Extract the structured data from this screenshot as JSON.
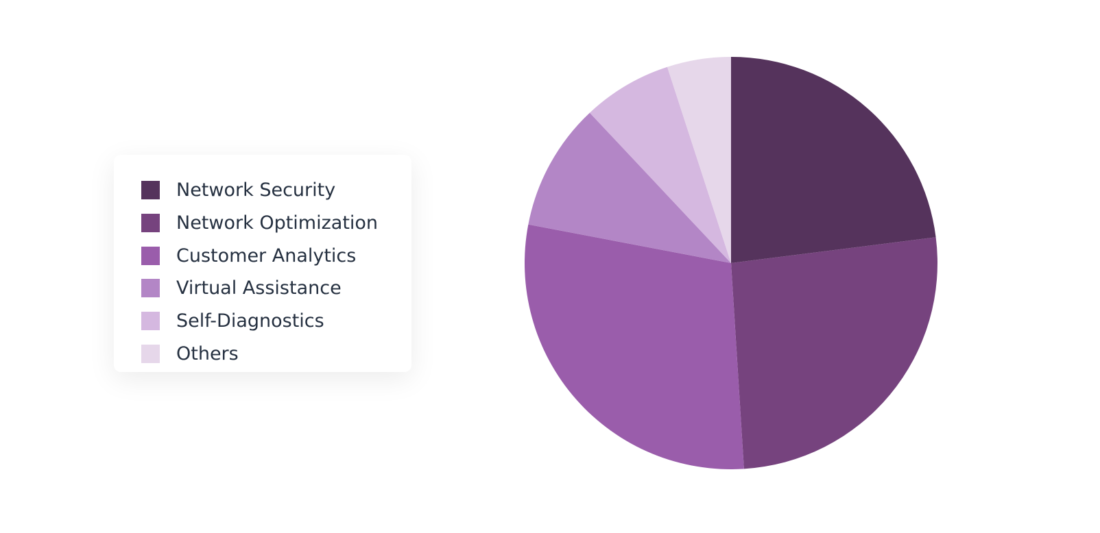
{
  "chart_data": {
    "type": "pie",
    "categories": [
      "Network Security",
      "Network Optimization",
      "Customer Analytics",
      "Virtual Assistance",
      "Self-Diagnostics",
      "Others"
    ],
    "values": [
      23,
      26,
      29,
      10,
      7,
      5
    ],
    "colors": [
      "#55335c",
      "#76437e",
      "#9a5dab",
      "#b386c6",
      "#d5b8e0",
      "#e6d7ea"
    ],
    "legend": "left"
  }
}
